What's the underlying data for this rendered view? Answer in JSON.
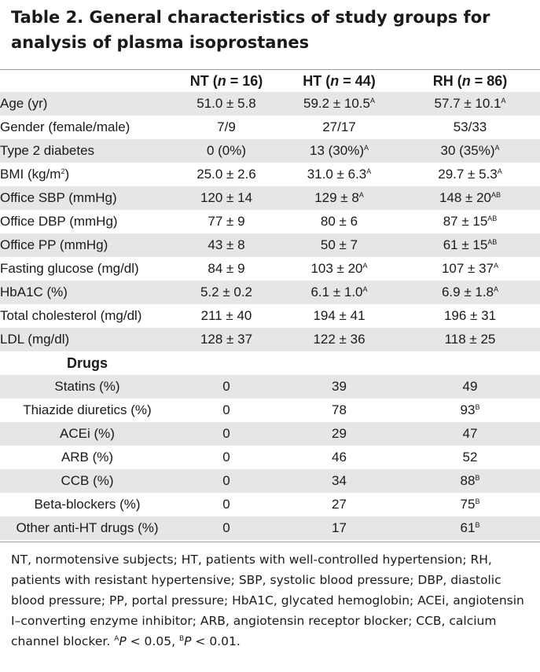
{
  "title": "Table 2. General characteristics of study groups for analysis of plasma isoprostanes",
  "columns": [
    {
      "name": "NT",
      "n_label": "n",
      "n_value": "= 16"
    },
    {
      "name": "HT",
      "n_label": "n",
      "n_value": "= 44"
    },
    {
      "name": "RH",
      "n_label": "n",
      "n_value": "= 86"
    }
  ],
  "rows": [
    {
      "label": "Age (yr)",
      "nt": "51.0 ± 5.8",
      "ht": "59.2 ± 10.5",
      "ht_sup": "A",
      "rh": "57.7 ± 10.1",
      "rh_sup": "A"
    },
    {
      "label": "Gender (female/male)",
      "nt": "7/9",
      "ht": "27/17",
      "ht_sup": "",
      "rh": "53/33",
      "rh_sup": ""
    },
    {
      "label": "Type 2 diabetes",
      "nt": "0 (0%)",
      "ht": "13 (30%)",
      "ht_sup": "A",
      "rh": "30 (35%)",
      "rh_sup": "A"
    },
    {
      "label_pre": "BMI (kg/m",
      "label_sup": "2",
      "label_post": ")",
      "nt": "25.0 ± 2.6",
      "ht": "31.0 ± 6.3",
      "ht_sup": "A",
      "rh": "29.7 ± 5.3",
      "rh_sup": "A"
    },
    {
      "label": "Office SBP (mmHg)",
      "nt": "120 ± 14",
      "ht": "129 ± 8",
      "ht_sup": "A",
      "rh": "148 ± 20",
      "rh_sup": "AB"
    },
    {
      "label": "Office DBP (mmHg)",
      "nt": "77 ± 9",
      "ht": "80 ± 6",
      "ht_sup": "",
      "rh": "87 ± 15",
      "rh_sup": "AB"
    },
    {
      "label": "Office PP (mmHg)",
      "nt": "43 ± 8",
      "ht": "50 ± 7",
      "ht_sup": "",
      "rh": "61 ± 15",
      "rh_sup": "AB"
    },
    {
      "label": "Fasting glucose (mg/dl)",
      "nt": "84 ± 9",
      "ht": "103 ± 20",
      "ht_sup": "A",
      "rh": "107 ± 37",
      "rh_sup": "A"
    },
    {
      "label": "HbA1C (%)",
      "nt": "5.2 ± 0.2",
      "ht": "6.1 ± 1.0",
      "ht_sup": "A",
      "rh": "6.9 ± 1.8",
      "rh_sup": "A"
    },
    {
      "label": "Total cholesterol (mg/dl)",
      "nt": "211 ± 40",
      "ht": "194 ± 41",
      "ht_sup": "",
      "rh": "196 ± 31",
      "rh_sup": ""
    },
    {
      "label": "LDL (mg/dl)",
      "nt": "128 ± 37",
      "ht": "122 ± 36",
      "ht_sup": "",
      "rh": "118 ± 25",
      "rh_sup": ""
    }
  ],
  "drugs_heading": "Drugs",
  "drugs": [
    {
      "label": "Statins (%)",
      "nt": "0",
      "ht": "39",
      "rh": "49",
      "rh_sup": ""
    },
    {
      "label": "Thiazide diuretics (%)",
      "nt": "0",
      "ht": "78",
      "rh": "93",
      "rh_sup": "B"
    },
    {
      "label": "ACEi (%)",
      "nt": "0",
      "ht": "29",
      "rh": "47",
      "rh_sup": ""
    },
    {
      "label": "ARB (%)",
      "nt": "0",
      "ht": "46",
      "rh": "52",
      "rh_sup": ""
    },
    {
      "label": "CCB (%)",
      "nt": "0",
      "ht": "34",
      "rh": "88",
      "rh_sup": "B"
    },
    {
      "label": "Beta-blockers (%)",
      "nt": "0",
      "ht": "27",
      "rh": "75",
      "rh_sup": "B"
    },
    {
      "label": "Other anti-HT drugs (%)",
      "nt": "0",
      "ht": "17",
      "rh": "61",
      "rh_sup": "B"
    }
  ],
  "footnote": {
    "text": "NT, normotensive subjects; HT, patients with well-controlled hypertension; RH, patients with resistant hypertensive; SBP, systolic blood pressure; DBP, diastolic blood pressure; PP, portal pressure; HbA1C, glycated hemoglobin; ACEi, angiotensin I–converting enzyme inhibitor; ARB, angiotensin receptor blocker; CCB, calcium channel blocker. ",
    "sig_a_sup": "A",
    "sig_a_italic": "P",
    "sig_a_text": " < 0.05, ",
    "sig_b_sup": "B",
    "sig_b_italic": "P",
    "sig_b_text": " < 0.01."
  }
}
